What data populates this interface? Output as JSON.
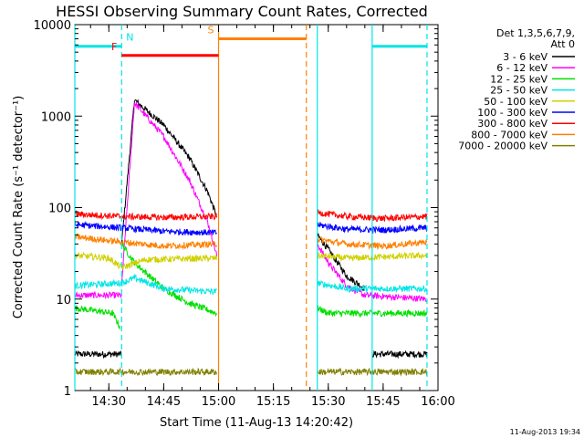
{
  "chart_data": {
    "type": "line",
    "title": "HESSI Observing Summary Count Rates, Corrected",
    "xlabel": "Start Time (11-Aug-13 14:20:42)",
    "ylabel": "Corrected Count Rate (s⁻¹ detector⁻¹)",
    "xlim": [
      "14:20:42",
      "16:00:00"
    ],
    "ylim": [
      1,
      10000
    ],
    "yscale": "log",
    "x_ticks": [
      "14:30",
      "14:45",
      "15:00",
      "15:15",
      "15:30",
      "15:45",
      "16:00"
    ],
    "y_ticks": [
      "1",
      "10",
      "100",
      "1000",
      "10000"
    ],
    "timestamp": "11-Aug-2013 19:34",
    "legend": {
      "position": "top-right",
      "header": [
        "Det 1,3,5,6,7,9,",
        "Att 0"
      ]
    },
    "flags": [
      {
        "label": "N",
        "color": "#00e5e5",
        "level": 5800,
        "ranges": [
          [
            "14:20:42",
            "14:33:30"
          ],
          [
            "15:42:00",
            "15:57:00"
          ]
        ]
      },
      {
        "label": "F",
        "color": "#ff0000",
        "level": 4600,
        "ranges": [
          [
            "14:33:30",
            "15:00:00"
          ]
        ]
      },
      {
        "label": "S",
        "color": "#ff8000",
        "level": 7000,
        "ranges": [
          [
            "15:00:00",
            "15:24:00"
          ]
        ]
      }
    ],
    "vlines": [
      {
        "time": "14:33:30",
        "color": "#00e5e5",
        "style": "dashed"
      },
      {
        "time": "15:57:00",
        "color": "#00e5e5",
        "style": "dashed"
      },
      {
        "time": "15:00:00",
        "color": "#ff8000",
        "style": "solid"
      },
      {
        "time": "15:24:00",
        "color": "#ff8000",
        "style": "dashed"
      },
      {
        "time": "14:20:42",
        "color": "#00e5e5",
        "style": "solid"
      },
      {
        "time": "15:27:00",
        "color": "#00e5e5",
        "style": "solid"
      },
      {
        "time": "15:42:00",
        "color": "#00e5e5",
        "style": "solid"
      }
    ],
    "series": [
      {
        "name": "3 - 6 keV",
        "color": "#000000",
        "segments": [
          {
            "x": [
              "14:20:42",
              "14:33:30"
            ],
            "y": [
              2.5,
              2.5
            ]
          },
          {
            "x": [
              "14:33:30",
              "14:37:00",
              "14:45:00",
              "14:52:00",
              "14:57:00",
              "14:59:30"
            ],
            "y": [
              40,
              1500,
              800,
              350,
              150,
              80
            ]
          },
          {
            "x": [
              "15:27:00",
              "15:30:00",
              "15:35:00",
              "15:40:00"
            ],
            "y": [
              50,
              35,
              18,
              13
            ]
          },
          {
            "x": [
              "15:42:00",
              "15:57:00"
            ],
            "y": [
              2.5,
              2.5
            ]
          }
        ]
      },
      {
        "name": "6 - 12 keV",
        "color": "#ff00ff",
        "segments": [
          {
            "x": [
              "14:20:42",
              "14:33:30"
            ],
            "y": [
              11,
              11
            ]
          },
          {
            "x": [
              "14:33:30",
              "14:37:00",
              "14:45:00",
              "14:52:00",
              "14:57:00",
              "14:59:30"
            ],
            "y": [
              14,
              1400,
              600,
              200,
              70,
              30
            ]
          },
          {
            "x": [
              "15:27:00",
              "15:30:00",
              "15:35:00",
              "15:40:00",
              "15:57:00"
            ],
            "y": [
              40,
              25,
              14,
              11,
              10
            ]
          }
        ]
      },
      {
        "name": "12 - 25 keV",
        "color": "#00e000",
        "segments": [
          {
            "x": [
              "14:20:42",
              "14:31:00",
              "14:33:00"
            ],
            "y": [
              8,
              7,
              5
            ]
          },
          {
            "x": [
              "14:33:30",
              "14:37:00",
              "14:45:00",
              "14:52:00",
              "14:59:30"
            ],
            "y": [
              40,
              25,
              13,
              9,
              7
            ]
          },
          {
            "x": [
              "15:27:00",
              "15:30:00",
              "15:35:00",
              "15:57:00"
            ],
            "y": [
              8,
              7,
              7,
              7
            ]
          }
        ]
      },
      {
        "name": "25 - 50 keV",
        "color": "#00e5e5",
        "segments": [
          {
            "x": [
              "14:20:42",
              "14:33:30",
              "14:37:00",
              "14:45:00",
              "14:59:30"
            ],
            "y": [
              14,
              15,
              17,
              13,
              12
            ]
          },
          {
            "x": [
              "15:27:00",
              "15:35:00",
              "15:57:00"
            ],
            "y": [
              15,
              13,
              13
            ]
          }
        ]
      },
      {
        "name": "50 - 100 keV",
        "color": "#d0d000",
        "segments": [
          {
            "x": [
              "14:20:42",
              "14:30:00",
              "14:33:30",
              "14:40:00",
              "14:59:30"
            ],
            "y": [
              30,
              28,
              22,
              27,
              28
            ]
          },
          {
            "x": [
              "15:27:00",
              "15:35:00",
              "15:57:00"
            ],
            "y": [
              30,
              28,
              30
            ]
          }
        ]
      },
      {
        "name": "100 - 300 keV",
        "color": "#0000ff",
        "segments": [
          {
            "x": [
              "14:20:42",
              "14:33:30",
              "14:45:00",
              "14:59:30"
            ],
            "y": [
              65,
              60,
              55,
              53
            ]
          },
          {
            "x": [
              "15:27:00",
              "15:35:00",
              "15:45:00",
              "15:57:00"
            ],
            "y": [
              65,
              58,
              57,
              60
            ]
          }
        ]
      },
      {
        "name": "300 - 800 keV",
        "color": "#ff0000",
        "segments": [
          {
            "x": [
              "14:20:42",
              "14:33:30",
              "14:45:00",
              "14:59:30"
            ],
            "y": [
              85,
              80,
              78,
              80
            ]
          },
          {
            "x": [
              "15:27:00",
              "15:35:00",
              "15:45:00",
              "15:57:00"
            ],
            "y": [
              88,
              80,
              76,
              80
            ]
          }
        ]
      },
      {
        "name": "800 - 7000 keV",
        "color": "#ff8000",
        "segments": [
          {
            "x": [
              "14:20:42",
              "14:33:30",
              "14:45:00",
              "14:59:30"
            ],
            "y": [
              48,
              42,
              38,
              40
            ]
          },
          {
            "x": [
              "15:27:00",
              "15:35:00",
              "15:45:00",
              "15:57:00"
            ],
            "y": [
              45,
              40,
              38,
              42
            ]
          }
        ]
      },
      {
        "name": "7000 - 20000 keV",
        "color": "#808000",
        "segments": [
          {
            "x": [
              "14:20:42",
              "14:33:30"
            ],
            "y": [
              1.6,
              1.6
            ]
          },
          {
            "x": [
              "14:33:30",
              "14:59:30"
            ],
            "y": [
              1.6,
              1.6
            ]
          },
          {
            "x": [
              "15:27:00",
              "15:42:00"
            ],
            "y": [
              1.6,
              1.6
            ]
          },
          {
            "x": [
              "15:42:00",
              "15:57:00"
            ],
            "y": [
              1.6,
              1.6
            ]
          }
        ]
      }
    ]
  }
}
